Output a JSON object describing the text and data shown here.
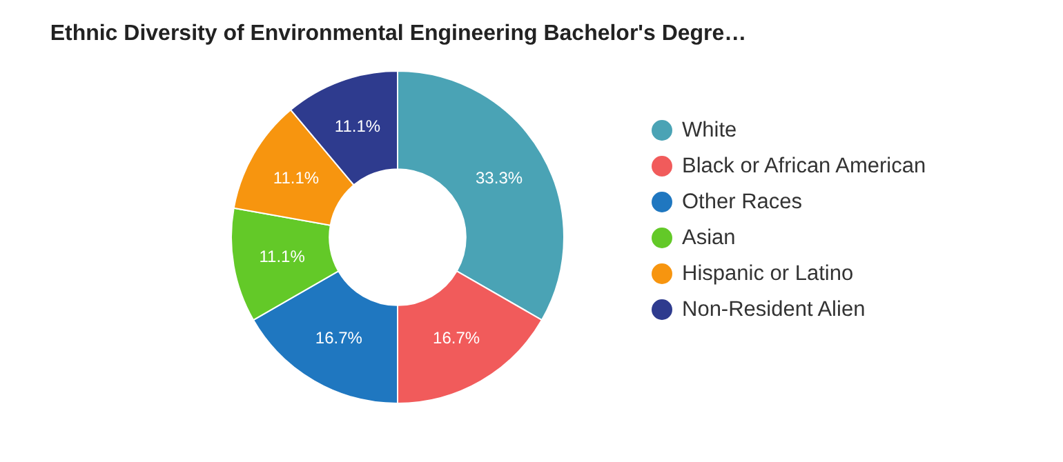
{
  "chart_data": {
    "type": "donut",
    "title": "Ethnic Diversity of Environmental Engineering Bachelor's Degre…",
    "categories": [
      "White",
      "Black or African American",
      "Other Races",
      "Asian",
      "Hispanic or Latino",
      "Non-Resident Alien"
    ],
    "values": [
      33.3,
      16.7,
      16.7,
      11.1,
      11.1,
      11.1
    ],
    "value_labels": [
      "33.3%",
      "16.7%",
      "16.7%",
      "11.1%",
      "11.1%",
      "11.1%"
    ],
    "colors": [
      "#4aa3b5",
      "#f15b5b",
      "#1f77c0",
      "#63c928",
      "#f7950f",
      "#2e3b8e"
    ],
    "legend": "right"
  }
}
